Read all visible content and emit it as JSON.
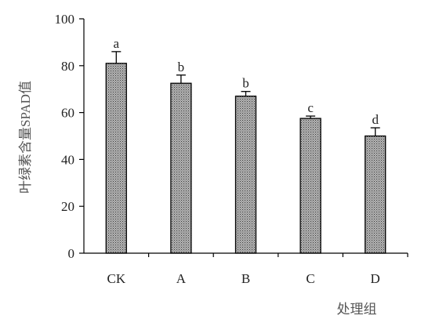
{
  "chart_data": {
    "type": "bar",
    "title": "",
    "xlabel": "处理组",
    "ylabel": "叶绿素含量SPAD值",
    "categories": [
      "CK",
      "A",
      "B",
      "C",
      "D"
    ],
    "values": [
      81,
      72.5,
      67,
      57.5,
      50
    ],
    "errors": [
      5,
      3.5,
      2,
      1,
      3.5
    ],
    "significance": [
      "a",
      "b",
      "b",
      "c",
      "d"
    ],
    "ylim": [
      0,
      100
    ],
    "yticks": [
      0,
      20,
      40,
      60,
      80,
      100
    ],
    "grid": false,
    "legend": "none",
    "colors": {
      "bar_fill": "#a9a9a9",
      "bar_dot": "#3a3a3a",
      "axis": "#000000"
    }
  }
}
